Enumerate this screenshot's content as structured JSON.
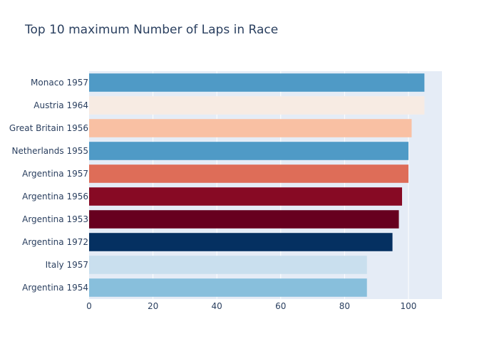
{
  "chart_data": {
    "type": "bar",
    "orientation": "horizontal",
    "title": "Top 10 maximum Number of Laps in Race",
    "xlabel": "",
    "ylabel": "",
    "categories": [
      "Monaco 1957",
      "Austria 1964",
      "Great Britain 1956",
      "Netherlands 1955",
      "Argentina 1957",
      "Argentina 1956",
      "Argentina 1953",
      "Argentina 1972",
      "Italy 1957",
      "Argentina 1954"
    ],
    "values": [
      105,
      105,
      101,
      100,
      100,
      98,
      97,
      95,
      87,
      87
    ],
    "colors": [
      "#4f9ac6",
      "#f7ebe3",
      "#f9c0a3",
      "#4f9ac6",
      "#de6d58",
      "#870a24",
      "#67001f",
      "#053061",
      "#c9dfee",
      "#88bfdc"
    ],
    "xlim": [
      0,
      110.5
    ],
    "xticks": [
      0,
      20,
      40,
      60,
      80,
      100
    ],
    "grid": true,
    "background": "#e5ecf6"
  }
}
